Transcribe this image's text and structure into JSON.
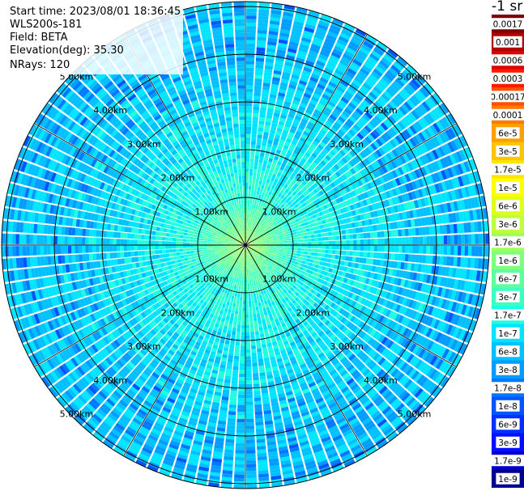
{
  "header": {
    "start_time": "Start time: 2023/08/01 18:36:45",
    "instrument": "WLS200s-181",
    "field": "Field: BETA",
    "elevation": "Elevation(deg): 35.30",
    "nrays": "NRays: 120"
  },
  "colorbar": {
    "unit_label": "-1 sr",
    "ticks": [
      "0.0017",
      "0.001",
      "0.0006",
      "0.0003",
      "0.00017",
      "0.0001",
      "6e-5",
      "3e-5",
      "1.7e-5",
      "1e-5",
      "6e-6",
      "3e-6",
      "1.7e-6",
      "1e-6",
      "6e-7",
      "3e-7",
      "1.7e-7",
      "1e-7",
      "6e-8",
      "3e-8",
      "1.7e-8",
      "1e-8",
      "6e-9",
      "3e-9",
      "1.7e-9",
      "1e-9"
    ]
  },
  "chart_data": {
    "type": "heatmap",
    "projection": "polar (PPI)",
    "title": "",
    "field": "BETA",
    "n_rays": 120,
    "elevation_deg": 35.3,
    "range_rings_km": [
      1,
      2,
      3,
      4,
      5
    ],
    "range_ring_labels": [
      "1.00km",
      "2.00km",
      "3.00km",
      "4.00km",
      "5.00km"
    ],
    "max_range_km": 5.1,
    "spoke_angles_deg": [
      0,
      30,
      60,
      90,
      120,
      150,
      180,
      210,
      240,
      270,
      300,
      330
    ],
    "color_scale": "log",
    "value_range": [
      1e-09,
      0.0017
    ],
    "range_profile": [
      {
        "range_km": 0.0,
        "beta": 2e-06
      },
      {
        "range_km": 0.5,
        "beta": 6e-07
      },
      {
        "range_km": 1.0,
        "beta": 2e-07
      },
      {
        "range_km": 2.0,
        "beta": 1.2e-07
      },
      {
        "range_km": 3.0,
        "beta": 8e-08
      },
      {
        "range_km": 4.0,
        "beta": 7e-08
      },
      {
        "range_km": 5.0,
        "beta": 6e-08
      }
    ],
    "colors": [
      "#800000",
      "#b30000",
      "#e00000",
      "#ff1a00",
      "#ff5000",
      "#ff7a00",
      "#ffa000",
      "#ffc400",
      "#ffe500",
      "#ffff00",
      "#dfff1a",
      "#bfff3f",
      "#9fff5f",
      "#7fff7f",
      "#5fffa0",
      "#3fffc0",
      "#1fffe0",
      "#00e5ff",
      "#00c0ff",
      "#009cff",
      "#0078ff",
      "#0055ff",
      "#0030ff",
      "#0010ff",
      "#0000d0",
      "#000090"
    ]
  }
}
